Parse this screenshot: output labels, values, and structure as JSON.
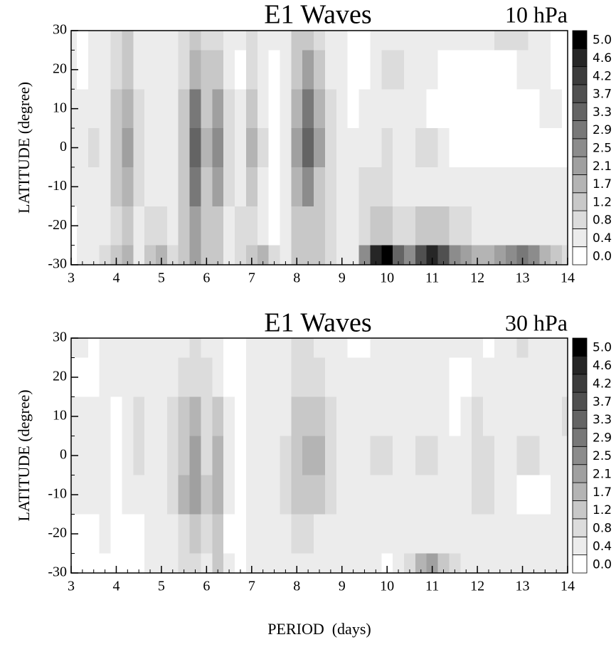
{
  "chart_data": [
    {
      "type": "contour",
      "title": "E1 Waves",
      "subtitle": "10 hPa",
      "ylabel": "LATITUDE (degree)",
      "xlim": [
        3,
        14
      ],
      "xticks": [
        3,
        4,
        5,
        6,
        7,
        8,
        9,
        10,
        11,
        12,
        13,
        14
      ],
      "ylim": [
        -30,
        30
      ],
      "yticks": [
        -30,
        -20,
        -10,
        0,
        10,
        20,
        30
      ],
      "x": [
        3,
        3.25,
        3.5,
        3.75,
        4,
        4.25,
        4.5,
        4.75,
        5,
        5.25,
        5.5,
        5.75,
        6,
        6.25,
        6.5,
        6.75,
        7,
        7.25,
        7.5,
        7.75,
        8,
        8.25,
        8.5,
        8.75,
        9,
        9.25,
        9.5,
        9.75,
        10,
        10.25,
        10.5,
        10.75,
        11,
        11.25,
        11.5,
        11.75,
        12,
        12.25,
        12.5,
        12.75,
        13,
        13.25,
        13.5,
        13.75,
        14
      ],
      "y": [
        30,
        20,
        10,
        0,
        -10,
        -20,
        -30
      ],
      "z": [
        [
          0.5,
          0.2,
          0.5,
          0.6,
          1.0,
          1.2,
          0.6,
          0.5,
          0.5,
          0.6,
          0.9,
          1.3,
          0.9,
          1.0,
          0.6,
          0.6,
          0.9,
          0.6,
          0.5,
          0.6,
          1.3,
          1.5,
          1.0,
          0.6,
          0.5,
          0.3,
          0.2,
          0.5,
          0.6,
          0.6,
          0.6,
          0.6,
          0.6,
          0.6,
          0.6,
          0.6,
          0.6,
          0.5,
          0.9,
          1.0,
          0.9,
          0.6,
          0.5,
          0.3,
          0.2
        ],
        [
          0.5,
          0.2,
          0.5,
          0.6,
          1.0,
          1.3,
          0.6,
          0.5,
          0.5,
          0.6,
          1.0,
          1.7,
          1.2,
          1.3,
          0.6,
          0.2,
          0.9,
          0.6,
          0.2,
          0.6,
          1.5,
          2.1,
          1.3,
          0.6,
          0.5,
          0.2,
          0.2,
          0.6,
          1.0,
          0.9,
          0.6,
          0.6,
          0.5,
          0.3,
          0.2,
          0.2,
          0.2,
          0.2,
          0.2,
          0.3,
          0.5,
          0.6,
          0.5,
          0.3,
          0.2
        ],
        [
          0.5,
          0.5,
          0.6,
          0.6,
          1.3,
          1.8,
          0.9,
          0.5,
          0.5,
          0.6,
          1.3,
          2.9,
          1.5,
          2.1,
          0.9,
          0.5,
          1.3,
          0.6,
          0.2,
          0.6,
          1.7,
          2.9,
          1.7,
          0.8,
          0.6,
          0.3,
          0.5,
          0.6,
          0.6,
          0.6,
          0.6,
          0.5,
          0.3,
          0.2,
          0.2,
          0.2,
          0.2,
          0.2,
          0.2,
          0.2,
          0.2,
          0.2,
          0.5,
          0.5,
          0.3
        ],
        [
          0.5,
          0.5,
          0.9,
          0.6,
          1.5,
          2.1,
          1.0,
          0.5,
          0.5,
          0.6,
          1.5,
          3.5,
          1.7,
          2.5,
          1.0,
          0.5,
          1.7,
          0.9,
          0.2,
          0.6,
          2.1,
          3.3,
          2.1,
          0.9,
          0.6,
          0.6,
          0.6,
          0.6,
          0.9,
          0.6,
          0.6,
          1.0,
          0.9,
          0.6,
          0.2,
          0.2,
          0.2,
          0.2,
          0.2,
          0.2,
          0.2,
          0.2,
          0.2,
          0.2,
          0.2
        ],
        [
          0.5,
          0.5,
          0.6,
          0.6,
          1.3,
          1.8,
          0.9,
          0.5,
          0.6,
          0.6,
          1.5,
          3.0,
          1.5,
          2.1,
          0.9,
          0.5,
          1.3,
          0.6,
          0.2,
          0.6,
          1.7,
          2.5,
          1.5,
          0.9,
          0.6,
          0.6,
          0.9,
          0.9,
          0.9,
          0.6,
          0.6,
          0.6,
          0.6,
          0.6,
          0.6,
          0.6,
          0.6,
          0.6,
          0.5,
          0.6,
          0.6,
          0.6,
          0.5,
          0.5,
          0.5
        ],
        [
          0.3,
          0.5,
          0.6,
          0.6,
          0.9,
          1.2,
          0.6,
          0.9,
          0.9,
          0.6,
          1.3,
          2.1,
          1.3,
          1.5,
          0.6,
          0.9,
          0.9,
          0.6,
          0.2,
          0.6,
          1.3,
          1.5,
          1.2,
          0.9,
          0.6,
          0.5,
          0.9,
          1.3,
          1.3,
          0.9,
          1.0,
          1.5,
          1.5,
          1.3,
          1.0,
          0.9,
          0.6,
          0.6,
          0.6,
          0.6,
          0.6,
          0.6,
          0.6,
          0.6,
          0.6
        ],
        [
          0.2,
          0.6,
          0.6,
          0.9,
          1.3,
          1.7,
          0.6,
          1.3,
          1.7,
          0.9,
          1.5,
          2.1,
          1.3,
          1.3,
          0.6,
          0.9,
          1.3,
          1.7,
          0.9,
          0.6,
          1.3,
          1.3,
          1.3,
          0.9,
          0.6,
          0.6,
          2.5,
          4.6,
          5.0,
          3.3,
          2.5,
          3.7,
          4.6,
          3.7,
          2.5,
          2.1,
          1.7,
          1.7,
          2.1,
          2.5,
          2.9,
          2.5,
          1.7,
          1.3,
          1.0
        ]
      ],
      "levels": [
        {
          "value": 0,
          "label": "0.0"
        },
        0.4,
        0.8,
        1.2,
        1.7,
        2.1,
        2.5,
        2.9,
        3.3,
        3.7,
        4.2,
        4.6,
        {
          "value": 5,
          "label": "5.0"
        }
      ],
      "colors": [
        "#ffffff",
        "#ececec",
        "#dcdcdc",
        "#c8c8c8",
        "#b4b4b4",
        "#a0a0a0",
        "#8c8c8c",
        "#787878",
        "#646464",
        "#505050",
        "#3c3c3c",
        "#262626",
        "#000000"
      ]
    },
    {
      "type": "contour",
      "title": "E1 Waves",
      "subtitle": "30 hPa",
      "ylabel": "LATITUDE (degree)",
      "xlabel": "PERIOD  (days)",
      "xlim": [
        3,
        14
      ],
      "xticks": [
        3,
        4,
        5,
        6,
        7,
        8,
        9,
        10,
        11,
        12,
        13,
        14
      ],
      "ylim": [
        -30,
        30
      ],
      "yticks": [
        -30,
        -20,
        -10,
        0,
        10,
        20,
        30
      ],
      "x": [
        3,
        3.25,
        3.5,
        3.75,
        4,
        4.25,
        4.5,
        4.75,
        5,
        5.25,
        5.5,
        5.75,
        6,
        6.25,
        6.5,
        6.75,
        7,
        7.25,
        7.5,
        7.75,
        8,
        8.25,
        8.5,
        8.75,
        9,
        9.25,
        9.5,
        9.75,
        10,
        10.25,
        10.5,
        10.75,
        11,
        11.25,
        11.5,
        11.75,
        12,
        12.25,
        12.5,
        12.75,
        13,
        13.25,
        13.5,
        13.75,
        14
      ],
      "y": [
        30,
        20,
        10,
        0,
        -10,
        -20,
        -30
      ],
      "z": [
        [
          0.5,
          0.5,
          0.2,
          0.6,
          0.5,
          0.6,
          0.5,
          0.5,
          0.6,
          0.6,
          0.6,
          0.9,
          0.6,
          0.6,
          0.2,
          0.2,
          0.6,
          0.6,
          0.6,
          0.6,
          0.9,
          0.9,
          0.6,
          0.6,
          0.6,
          0.2,
          0.2,
          0.6,
          0.6,
          0.6,
          0.6,
          0.6,
          0.6,
          0.6,
          0.6,
          0.6,
          0.5,
          0.2,
          0.6,
          0.6,
          0.9,
          0.6,
          0.5,
          0.6,
          0.6
        ],
        [
          0.2,
          0.2,
          0.2,
          0.6,
          0.5,
          0.5,
          0.5,
          0.6,
          0.6,
          0.6,
          0.9,
          1.0,
          0.9,
          0.6,
          0.2,
          0.2,
          0.6,
          0.6,
          0.6,
          0.6,
          0.9,
          1.0,
          0.9,
          0.6,
          0.6,
          0.6,
          0.5,
          0.5,
          0.6,
          0.6,
          0.6,
          0.6,
          0.6,
          0.6,
          0.2,
          0.2,
          0.5,
          0.6,
          0.6,
          0.6,
          0.6,
          0.5,
          0.5,
          0.5,
          0.6
        ],
        [
          0.5,
          0.6,
          0.6,
          0.5,
          0.3,
          0.6,
          0.9,
          0.6,
          0.6,
          0.9,
          1.5,
          1.7,
          1.0,
          1.5,
          0.6,
          0.3,
          0.6,
          0.6,
          0.6,
          0.6,
          1.3,
          1.3,
          1.3,
          0.9,
          0.6,
          0.6,
          0.6,
          0.6,
          0.6,
          0.5,
          0.5,
          0.6,
          0.6,
          0.6,
          0.2,
          0.6,
          0.9,
          0.6,
          0.6,
          0.5,
          0.6,
          0.6,
          0.5,
          0.6,
          0.9
        ],
        [
          0.5,
          0.6,
          0.6,
          0.5,
          0.3,
          0.6,
          1.0,
          0.6,
          0.6,
          0.9,
          1.5,
          2.1,
          1.0,
          1.7,
          0.6,
          0.2,
          0.6,
          0.6,
          0.6,
          0.9,
          1.5,
          1.7,
          1.7,
          0.9,
          0.6,
          0.6,
          0.6,
          0.9,
          0.9,
          0.6,
          0.5,
          0.9,
          1.0,
          0.6,
          0.6,
          0.6,
          1.0,
          1.0,
          0.6,
          0.6,
          0.9,
          0.9,
          0.6,
          0.6,
          0.6
        ],
        [
          0.5,
          0.5,
          0.5,
          0.5,
          0.3,
          0.6,
          0.6,
          0.6,
          0.6,
          0.9,
          1.7,
          2.1,
          1.3,
          1.9,
          0.6,
          0.2,
          0.6,
          0.6,
          0.6,
          0.9,
          1.3,
          1.5,
          1.5,
          0.9,
          0.6,
          0.6,
          0.6,
          0.6,
          0.6,
          0.6,
          0.6,
          0.6,
          0.6,
          0.6,
          0.6,
          0.6,
          0.9,
          0.9,
          0.6,
          0.6,
          0.3,
          0.2,
          0.2,
          0.5,
          0.6
        ],
        [
          0.3,
          0.2,
          0.2,
          0.5,
          0.2,
          0.2,
          0.3,
          0.5,
          0.6,
          0.6,
          1.0,
          1.3,
          0.9,
          1.3,
          0.3,
          0.2,
          0.5,
          0.6,
          0.6,
          0.6,
          0.9,
          0.9,
          0.6,
          0.6,
          0.6,
          0.6,
          0.6,
          0.6,
          0.6,
          0.6,
          0.6,
          0.6,
          0.6,
          0.6,
          0.6,
          0.6,
          0.6,
          0.6,
          0.6,
          0.6,
          0.6,
          0.6,
          0.6,
          0.6,
          0.6
        ],
        [
          0.2,
          0.2,
          0.2,
          0.2,
          0.2,
          0.2,
          0.2,
          0.5,
          0.6,
          0.6,
          1.0,
          0.9,
          0.6,
          1.3,
          0.6,
          0.2,
          0.6,
          0.5,
          0.6,
          0.6,
          0.6,
          0.6,
          0.6,
          0.6,
          0.6,
          0.6,
          0.6,
          0.5,
          0.2,
          0.6,
          0.9,
          1.7,
          2.1,
          1.3,
          0.9,
          0.6,
          0.6,
          0.6,
          0.6,
          0.6,
          0.6,
          0.6,
          0.5,
          0.6,
          0.6
        ]
      ],
      "levels": [
        {
          "value": 0,
          "label": "0.0"
        },
        0.4,
        0.8,
        1.2,
        1.7,
        2.1,
        2.5,
        2.9,
        3.3,
        3.7,
        4.2,
        4.6,
        {
          "value": 5,
          "label": "5.0"
        }
      ],
      "colors": [
        "#ffffff",
        "#ececec",
        "#dcdcdc",
        "#c8c8c8",
        "#b4b4b4",
        "#a0a0a0",
        "#8c8c8c",
        "#787878",
        "#646464",
        "#505050",
        "#3c3c3c",
        "#262626",
        "#000000"
      ]
    }
  ]
}
